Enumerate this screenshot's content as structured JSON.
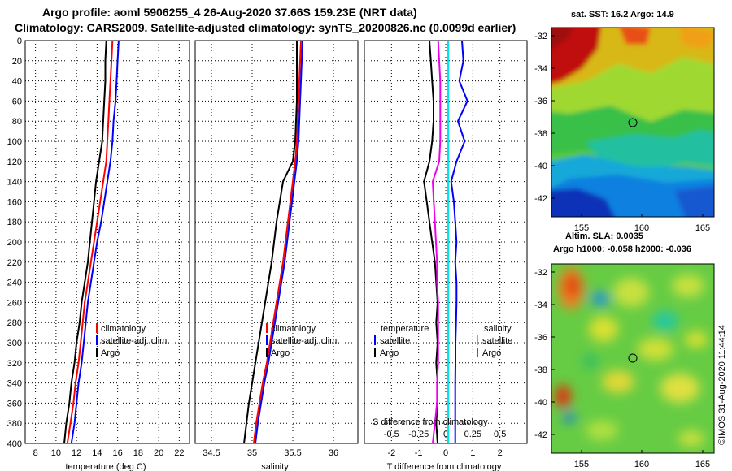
{
  "header": {
    "title_line1": "Argo profile: aoml 5906255_4 26-Aug-2020 37.66S 159.23E (NRT data)",
    "title_line2": "Climatology: CARS2009. Satellite-adjusted climatology: synTS_20200826.nc (0.0099d earlier)"
  },
  "sst_map": {
    "title": "sat. SST: 16.2 Argo: 14.9",
    "lon_ticks": [
      "155",
      "160",
      "165"
    ],
    "lat_ticks": [
      "-32",
      "-34",
      "-36",
      "-38",
      "-40",
      "-42"
    ]
  },
  "sla_map": {
    "title_line1": "Altim. SLA: 0.0035",
    "title_line2": "Argo h1000: -0.058 h2000: -0.036",
    "lon_ticks": [
      "155",
      "160",
      "165"
    ],
    "lat_ticks": [
      "-32",
      "-34",
      "-36",
      "-38",
      "-40",
      "-42"
    ]
  },
  "credit": "©IMOS 31-Aug-2020 11:44:14",
  "colors": {
    "climatology": "#ff0000",
    "satellite": "#0000ff",
    "argo": "#000000",
    "salinity_satellite": "#00e5ee",
    "salinity_argo": "#ee00ee"
  },
  "chart_data": [
    {
      "type": "line",
      "xlabel": "temperature (deg C)",
      "ylabel": "",
      "xlim": [
        7,
        23
      ],
      "ylim": [
        400,
        0
      ],
      "xticks": [
        8,
        10,
        12,
        14,
        16,
        18,
        20,
        22
      ],
      "yticks": [
        0,
        20,
        40,
        60,
        80,
        100,
        120,
        140,
        160,
        180,
        200,
        220,
        240,
        260,
        280,
        300,
        320,
        340,
        360,
        380,
        400
      ],
      "legend": [
        "climatology",
        "satellite-adj. clim.",
        "Argo"
      ],
      "series": [
        {
          "name": "climatology",
          "depth": [
            0,
            20,
            40,
            60,
            80,
            100,
            120,
            140,
            160,
            180,
            200,
            220,
            240,
            260,
            280,
            300,
            320,
            340,
            360,
            380,
            400
          ],
          "values": [
            15.5,
            15.4,
            15.3,
            15.2,
            15.1,
            15.0,
            14.9,
            14.6,
            14.3,
            14.0,
            13.7,
            13.4,
            13.1,
            12.8,
            12.6,
            12.4,
            12.2,
            11.9,
            11.7,
            11.4,
            11.1
          ]
        },
        {
          "name": "satellite-adj. clim.",
          "depth": [
            0,
            20,
            40,
            60,
            80,
            100,
            120,
            140,
            160,
            180,
            200,
            220,
            240,
            260,
            280,
            300,
            320,
            340,
            360,
            380,
            400
          ],
          "values": [
            16.1,
            16.0,
            15.9,
            15.8,
            15.6,
            15.5,
            15.3,
            15.0,
            14.7,
            14.4,
            14.0,
            13.7,
            13.4,
            13.1,
            12.9,
            12.7,
            12.5,
            12.2,
            12.0,
            11.8,
            11.5
          ]
        },
        {
          "name": "Argo",
          "depth": [
            0,
            20,
            40,
            60,
            80,
            100,
            120,
            140,
            160,
            180,
            200,
            220,
            240,
            260,
            280,
            300,
            320,
            340,
            360,
            380,
            400
          ],
          "values": [
            14.9,
            14.8,
            14.8,
            14.7,
            14.6,
            14.5,
            14.2,
            13.9,
            13.7,
            13.5,
            13.3,
            13.1,
            12.8,
            12.5,
            12.3,
            12.0,
            11.8,
            11.5,
            11.3,
            11.0,
            10.8
          ]
        }
      ]
    },
    {
      "type": "line",
      "xlabel": "salinity",
      "ylabel": "",
      "xlim": [
        34.3,
        36.3
      ],
      "ylim": [
        400,
        0
      ],
      "xticks": [
        34.5,
        35,
        35.5,
        36
      ],
      "xtick_labels": [
        "34.5",
        "35",
        "35.5",
        "36"
      ],
      "legend": [
        "climatology",
        "satellite-adj. clim.",
        "Argo"
      ],
      "series": [
        {
          "name": "climatology",
          "depth": [
            0,
            20,
            40,
            60,
            80,
            100,
            120,
            140,
            160,
            180,
            200,
            220,
            240,
            260,
            280,
            300,
            320,
            340,
            360,
            380,
            400
          ],
          "values": [
            35.6,
            35.59,
            35.58,
            35.57,
            35.56,
            35.55,
            35.53,
            35.5,
            35.47,
            35.44,
            35.41,
            35.38,
            35.34,
            35.3,
            35.26,
            35.22,
            35.18,
            35.13,
            35.09,
            35.05,
            35.02
          ]
        },
        {
          "name": "satellite-adj. clim.",
          "depth": [
            0,
            20,
            40,
            60,
            80,
            100,
            120,
            140,
            160,
            180,
            200,
            220,
            240,
            260,
            280,
            300,
            320,
            340,
            360,
            380,
            400
          ],
          "values": [
            35.62,
            35.61,
            35.6,
            35.59,
            35.58,
            35.57,
            35.55,
            35.52,
            35.49,
            35.46,
            35.43,
            35.4,
            35.36,
            35.32,
            35.28,
            35.24,
            35.2,
            35.15,
            35.11,
            35.07,
            35.04
          ]
        },
        {
          "name": "Argo",
          "depth": [
            0,
            20,
            40,
            60,
            80,
            100,
            120,
            140,
            160,
            180,
            200,
            220,
            240,
            260,
            280,
            300,
            320,
            340,
            360,
            380,
            400
          ],
          "values": [
            35.55,
            35.55,
            35.55,
            35.55,
            35.54,
            35.53,
            35.5,
            35.38,
            35.34,
            35.3,
            35.27,
            35.24,
            35.2,
            35.16,
            35.12,
            35.08,
            35.04,
            35.0,
            34.96,
            34.93,
            34.9
          ]
        }
      ]
    },
    {
      "type": "line",
      "xlabel": "T difference from climatology",
      "xlabel2": "S difference from climatology",
      "ylabel": "",
      "xlim": [
        -3,
        3
      ],
      "ylim": [
        400,
        0
      ],
      "xticks": [
        -2,
        -1,
        0,
        1,
        2
      ],
      "xticks2": [
        -0.5,
        -0.25,
        0,
        0.25,
        0.5
      ],
      "xticks2_labels": [
        "-0.5",
        "-0.25",
        "0",
        "0.25",
        "0.5"
      ],
      "legend_temperature_title": "temperature",
      "legend_salinity_title": "salinity",
      "legend_temperature": [
        "satellite",
        "Argo"
      ],
      "legend_salinity": [
        "satellite",
        "Argo"
      ],
      "series": [
        {
          "name": "T satellite",
          "depth": [
            0,
            20,
            40,
            60,
            80,
            100,
            120,
            140,
            160,
            180,
            200,
            220,
            240,
            260,
            280,
            300,
            320,
            340,
            360,
            380,
            400
          ],
          "values": [
            0.6,
            0.65,
            0.5,
            0.8,
            0.45,
            0.7,
            0.4,
            0.2,
            0.3,
            0.35,
            0.4,
            0.35,
            0.4,
            0.4,
            0.38,
            0.36,
            0.36,
            0.35,
            0.35,
            0.35,
            0.35
          ]
        },
        {
          "name": "T Argo",
          "depth": [
            0,
            20,
            40,
            60,
            80,
            100,
            120,
            140,
            160,
            180,
            200,
            220,
            240,
            260,
            280,
            300,
            320,
            340,
            360,
            380,
            400
          ],
          "values": [
            -0.6,
            -0.55,
            -0.5,
            -0.45,
            -0.45,
            -0.5,
            -0.6,
            -0.8,
            -0.7,
            -0.6,
            -0.5,
            -0.4,
            -0.35,
            -0.3,
            -0.35,
            -0.3,
            -0.35,
            -0.3,
            -0.3,
            -0.35,
            -0.3
          ]
        },
        {
          "name": "S satellite",
          "depth": [
            0,
            20,
            40,
            60,
            80,
            100,
            120,
            140,
            160,
            180,
            200,
            220,
            240,
            260,
            280,
            300,
            320,
            340,
            360,
            380,
            400
          ],
          "values": [
            0.02,
            0.02,
            0.02,
            0.02,
            0.02,
            0.02,
            0.02,
            0.02,
            0.02,
            0.02,
            0.02,
            0.02,
            0.02,
            0.02,
            0.02,
            0.02,
            0.02,
            0.02,
            0.02,
            0.02,
            0.02
          ]
        },
        {
          "name": "S Argo",
          "depth": [
            0,
            20,
            40,
            60,
            80,
            100,
            120,
            140,
            160,
            180,
            200,
            220,
            240,
            260,
            280,
            300,
            320,
            340,
            360,
            380,
            400
          ],
          "values": [
            -0.07,
            -0.06,
            -0.05,
            -0.05,
            -0.05,
            -0.05,
            -0.06,
            -0.12,
            -0.11,
            -0.1,
            -0.09,
            -0.08,
            -0.08,
            -0.07,
            -0.07,
            -0.07,
            -0.07,
            -0.08,
            -0.08,
            -0.1,
            -0.12
          ]
        }
      ]
    }
  ]
}
